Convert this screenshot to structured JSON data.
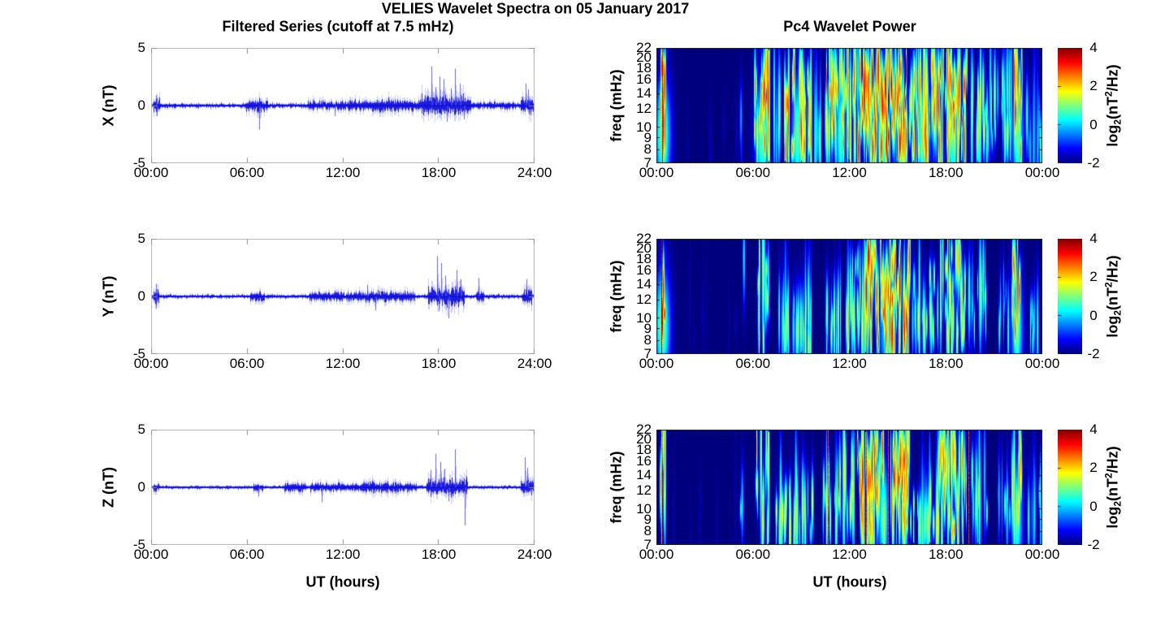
{
  "figure": {
    "title": "VELIES Wavelet Spectra on 05 January 2017",
    "left_subtitle": "Filtered Series (cutoff at 7.5 mHz)",
    "right_subtitle": "Pc4 Wavelet Power",
    "xlabel": "UT (hours)",
    "background_color": "#ffffff",
    "series_color": "#0000cc",
    "axis_box_color": "#b3b3b3",
    "tick_color": "#8f8f8f",
    "text_color": "#000000"
  },
  "left_axes": {
    "ylim": [
      -5,
      5
    ],
    "ytick_labels": [
      "5",
      "0",
      "-5"
    ],
    "xtick_labels": [
      "00:00",
      "06:00",
      "12:00",
      "18:00",
      "24:00"
    ],
    "xlabel": "UT (hours)"
  },
  "right_axes": {
    "ylabel": "freq (mHz)",
    "yscale": "log",
    "ylim_mhz": [
      7,
      22
    ],
    "ytick_values": [
      22,
      20,
      18,
      16,
      14,
      12,
      10,
      9,
      8,
      7
    ],
    "xtick_labels": [
      "00:00",
      "06:00",
      "12:00",
      "18:00",
      "00:00"
    ],
    "xlabel": "UT (hours)",
    "colorbar": {
      "range": [
        -2,
        4
      ],
      "tick_labels": [
        "4",
        "2",
        "0",
        "-2"
      ],
      "colormap": "jet",
      "label_parts": {
        "p1": "log",
        "sub": "2",
        "p2": "(nT",
        "sup": "2",
        "p3": "/Hz)"
      }
    }
  },
  "chart_data": [
    {
      "type": "line",
      "component": "X",
      "ylabel": "X (nT)",
      "xlabel": "UT (hours)",
      "ylim": [
        -5,
        5
      ],
      "xlim_hours": [
        0,
        24
      ],
      "yticks": [
        5,
        0,
        -5
      ],
      "xticks": [
        "00:00",
        "06:00",
        "12:00",
        "18:00",
        "24:00"
      ],
      "noise_floor_nT": 0.14,
      "envelope": [
        {
          "t": [
            0.15,
            0.55
          ],
          "amp": 0.55
        },
        {
          "t": [
            5.9,
            7.3
          ],
          "amp": 0.35
        },
        {
          "t": [
            6.6,
            6.9
          ],
          "amp": 0.5
        },
        {
          "t": [
            9.8,
            12.2
          ],
          "amp": 0.3
        },
        {
          "t": [
            12.3,
            16.9
          ],
          "amp": 0.35
        },
        {
          "t": [
            13.8,
            15.3
          ],
          "amp": 0.45
        },
        {
          "t": [
            16.9,
            20.0
          ],
          "amp": 0.65
        },
        {
          "t": [
            20.0,
            22.8
          ],
          "amp": 0.22
        },
        {
          "t": [
            23.1,
            23.9
          ],
          "amp": 0.5
        }
      ],
      "spikes": [
        {
          "t": 0.3,
          "v": 0.9
        },
        {
          "t": 0.35,
          "v": -0.9
        },
        {
          "t": 6.75,
          "v": -2.1
        },
        {
          "t": 11.5,
          "v": -0.9
        },
        {
          "t": 17.55,
          "v": 3.4
        },
        {
          "t": 17.8,
          "v": 1.6
        },
        {
          "t": 18.05,
          "v": 2.5
        },
        {
          "t": 18.3,
          "v": 2.3
        },
        {
          "t": 18.5,
          "v": -1.4
        },
        {
          "t": 18.75,
          "v": 1.5
        },
        {
          "t": 19.0,
          "v": 3.2
        },
        {
          "t": 19.3,
          "v": 1.9
        },
        {
          "t": 19.6,
          "v": -1.2
        },
        {
          "t": 23.45,
          "v": 1.9
        },
        {
          "t": 23.6,
          "v": 1.4
        }
      ]
    },
    {
      "type": "heatmap",
      "component": "X",
      "ylabel": "freq (mHz)",
      "yscale": "log",
      "ylim_mhz": [
        7,
        22
      ],
      "clim": [
        -2,
        4
      ],
      "colormap": "jet",
      "xticks": [
        "00:00",
        "06:00",
        "12:00",
        "18:00",
        "00:00"
      ],
      "bursts": [
        {
          "t": [
            0.2,
            0.55
          ],
          "level": 4,
          "density": 25,
          "fbias": "full"
        },
        {
          "t": [
            1.0,
            5.0
          ],
          "level": -1.2,
          "density": 2,
          "fbias": "low"
        },
        {
          "t": [
            5.2,
            5.5
          ],
          "level": 0.5,
          "density": 8,
          "fbias": "low"
        },
        {
          "t": [
            6.1,
            7.0
          ],
          "level": 3.5,
          "density": 22,
          "fbias": "full"
        },
        {
          "t": [
            7.2,
            7.8
          ],
          "level": 1.5,
          "density": 12,
          "fbias": "mid"
        },
        {
          "t": [
            7.9,
            9.6
          ],
          "level": 3.2,
          "density": 20,
          "fbias": "full"
        },
        {
          "t": [
            9.7,
            10.4
          ],
          "level": 1.5,
          "density": 10,
          "fbias": "low"
        },
        {
          "t": [
            10.5,
            12.4
          ],
          "level": 3.0,
          "density": 22,
          "fbias": "full"
        },
        {
          "t": [
            12.5,
            15.6
          ],
          "level": 4,
          "density": 30,
          "fbias": "full"
        },
        {
          "t": [
            15.7,
            17.4
          ],
          "level": 3.2,
          "density": 24,
          "fbias": "full"
        },
        {
          "t": [
            17.5,
            19.3
          ],
          "level": 3.4,
          "density": 24,
          "fbias": "full"
        },
        {
          "t": [
            19.4,
            20.6
          ],
          "level": 2.2,
          "density": 16,
          "fbias": "mid"
        },
        {
          "t": [
            20.7,
            22.1
          ],
          "level": 1.8,
          "density": 14,
          "fbias": "mid"
        },
        {
          "t": [
            22.2,
            22.7
          ],
          "level": 3.8,
          "density": 20,
          "fbias": "full"
        },
        {
          "t": [
            22.9,
            23.9
          ],
          "level": 1.2,
          "density": 10,
          "fbias": "low"
        }
      ],
      "lines": [
        {
          "t": 0.33,
          "power": 3.6
        }
      ]
    },
    {
      "type": "line",
      "component": "Y",
      "ylabel": "Y (nT)",
      "xlabel": "UT (hours)",
      "ylim": [
        -5,
        5
      ],
      "xlim_hours": [
        0,
        24
      ],
      "yticks": [
        5,
        0,
        -5
      ],
      "xticks": [
        "00:00",
        "06:00",
        "12:00",
        "18:00",
        "24:00"
      ],
      "noise_floor_nT": 0.12,
      "envelope": [
        {
          "t": [
            0.15,
            0.5
          ],
          "amp": 0.5
        },
        {
          "t": [
            6.2,
            7.1
          ],
          "amp": 0.3
        },
        {
          "t": [
            9.9,
            12.1
          ],
          "amp": 0.3
        },
        {
          "t": [
            12.2,
            16.5
          ],
          "amp": 0.35
        },
        {
          "t": [
            17.3,
            19.6
          ],
          "amp": 0.6
        },
        {
          "t": [
            20.3,
            20.8
          ],
          "amp": 0.35
        },
        {
          "t": [
            23.2,
            23.8
          ],
          "amp": 0.45
        }
      ],
      "spikes": [
        {
          "t": 0.3,
          "v": 1.1
        },
        {
          "t": 0.33,
          "v": -1.0
        },
        {
          "t": 13.5,
          "v": 1.0
        },
        {
          "t": 14.05,
          "v": -1.2
        },
        {
          "t": 17.9,
          "v": 3.5
        },
        {
          "t": 18.0,
          "v": -1.3
        },
        {
          "t": 18.15,
          "v": 2.9
        },
        {
          "t": 18.4,
          "v": 1.8
        },
        {
          "t": 18.6,
          "v": -1.9
        },
        {
          "t": 19.1,
          "v": 2.3
        },
        {
          "t": 19.35,
          "v": 1.5
        },
        {
          "t": 20.5,
          "v": 1.6
        },
        {
          "t": 23.5,
          "v": 1.5
        }
      ]
    },
    {
      "type": "heatmap",
      "component": "Y",
      "ylabel": "freq (mHz)",
      "yscale": "log",
      "ylim_mhz": [
        7,
        22
      ],
      "clim": [
        -2,
        4
      ],
      "colormap": "jet",
      "xticks": [
        "00:00",
        "06:00",
        "12:00",
        "18:00",
        "00:00"
      ],
      "bursts": [
        {
          "t": [
            0.2,
            0.5
          ],
          "level": 4,
          "density": 15,
          "fbias": "full"
        },
        {
          "t": [
            1.0,
            5.0
          ],
          "level": -1.4,
          "density": 1.5,
          "fbias": "low"
        },
        {
          "t": [
            5.2,
            5.45
          ],
          "level": 1.0,
          "density": 6,
          "fbias": "full"
        },
        {
          "t": [
            6.2,
            7.0
          ],
          "level": 2.2,
          "density": 16,
          "fbias": "full"
        },
        {
          "t": [
            7.4,
            9.6
          ],
          "level": 1.8,
          "density": 14,
          "fbias": "low"
        },
        {
          "t": [
            10.4,
            11.6
          ],
          "level": 1.8,
          "density": 12,
          "fbias": "low"
        },
        {
          "t": [
            11.8,
            13.0
          ],
          "level": 2.4,
          "density": 18,
          "fbias": "full"
        },
        {
          "t": [
            13.0,
            15.8
          ],
          "level": 3.6,
          "density": 26,
          "fbias": "full"
        },
        {
          "t": [
            15.9,
            17.3
          ],
          "level": 2.0,
          "density": 16,
          "fbias": "mid"
        },
        {
          "t": [
            17.4,
            19.2
          ],
          "level": 2.6,
          "density": 18,
          "fbias": "full"
        },
        {
          "t": [
            19.3,
            20.5
          ],
          "level": 1.6,
          "density": 12,
          "fbias": "mid"
        },
        {
          "t": [
            21.3,
            22.0
          ],
          "level": 1.4,
          "density": 10,
          "fbias": "mid"
        },
        {
          "t": [
            22.1,
            22.7
          ],
          "level": 3.4,
          "density": 16,
          "fbias": "full"
        },
        {
          "t": [
            23.0,
            23.9
          ],
          "level": 1.0,
          "density": 8,
          "fbias": "low"
        }
      ],
      "lines": [
        {
          "t": 0.3,
          "power": 4
        },
        {
          "t": 6.35,
          "power": 2.0
        }
      ]
    },
    {
      "type": "line",
      "component": "Z",
      "ylabel": "Z (nT)",
      "xlabel": "UT (hours)",
      "ylim": [
        -5,
        5
      ],
      "xlim_hours": [
        0,
        24
      ],
      "yticks": [
        5,
        0,
        -5
      ],
      "xticks": [
        "00:00",
        "06:00",
        "12:00",
        "18:00",
        "24:00"
      ],
      "noise_floor_nT": 0.1,
      "envelope": [
        {
          "t": [
            0.15,
            0.5
          ],
          "amp": 0.3
        },
        {
          "t": [
            6.4,
            7.0
          ],
          "amp": 0.25
        },
        {
          "t": [
            8.3,
            9.7
          ],
          "amp": 0.3
        },
        {
          "t": [
            9.9,
            16.6
          ],
          "amp": 0.28
        },
        {
          "t": [
            13.3,
            15.4
          ],
          "amp": 0.35
        },
        {
          "t": [
            17.2,
            19.8
          ],
          "amp": 0.55
        },
        {
          "t": [
            23.1,
            23.9
          ],
          "amp": 0.45
        }
      ],
      "spikes": [
        {
          "t": 6.7,
          "v": -0.8
        },
        {
          "t": 10.7,
          "v": -1.3
        },
        {
          "t": 17.5,
          "v": 1.5
        },
        {
          "t": 17.8,
          "v": 2.9
        },
        {
          "t": 18.1,
          "v": 2.2
        },
        {
          "t": 18.35,
          "v": 1.6
        },
        {
          "t": 18.6,
          "v": -1.2
        },
        {
          "t": 19.0,
          "v": 3.3
        },
        {
          "t": 19.65,
          "v": -3.3
        },
        {
          "t": 23.4,
          "v": 2.6
        },
        {
          "t": 23.55,
          "v": 1.7
        }
      ]
    },
    {
      "type": "heatmap",
      "component": "Z",
      "ylabel": "freq (mHz)",
      "yscale": "log",
      "ylim_mhz": [
        7,
        22
      ],
      "clim": [
        -2,
        4
      ],
      "colormap": "jet",
      "xticks": [
        "00:00",
        "06:00",
        "12:00",
        "18:00",
        "00:00"
      ],
      "bursts": [
        {
          "t": [
            0.2,
            0.5
          ],
          "level": 2.8,
          "density": 12,
          "fbias": "full"
        },
        {
          "t": [
            1.0,
            5.0
          ],
          "level": -1.4,
          "density": 1.5,
          "fbias": "low"
        },
        {
          "t": [
            5.2,
            5.45
          ],
          "level": 0.8,
          "density": 6,
          "fbias": "mid"
        },
        {
          "t": [
            6.2,
            7.0
          ],
          "level": 2.4,
          "density": 16,
          "fbias": "full"
        },
        {
          "t": [
            7.4,
            9.7
          ],
          "level": 2.0,
          "density": 14,
          "fbias": "low"
        },
        {
          "t": [
            10.3,
            12.3
          ],
          "level": 2.2,
          "density": 16,
          "fbias": "mid"
        },
        {
          "t": [
            12.4,
            15.8
          ],
          "level": 3.4,
          "density": 26,
          "fbias": "full"
        },
        {
          "t": [
            15.9,
            17.3
          ],
          "level": 2.0,
          "density": 16,
          "fbias": "low"
        },
        {
          "t": [
            17.4,
            19.3
          ],
          "level": 2.8,
          "density": 18,
          "fbias": "full"
        },
        {
          "t": [
            19.4,
            20.6
          ],
          "level": 1.6,
          "density": 12,
          "fbias": "mid"
        },
        {
          "t": [
            21.2,
            22.0
          ],
          "level": 1.2,
          "density": 10,
          "fbias": "mid"
        },
        {
          "t": [
            22.1,
            22.7
          ],
          "level": 3.0,
          "density": 16,
          "fbias": "full"
        },
        {
          "t": [
            23.0,
            23.9
          ],
          "level": 1.0,
          "density": 8,
          "fbias": "low"
        }
      ],
      "lines": [
        {
          "t": 0.3,
          "power": 2.5
        },
        {
          "t": 10.65,
          "power": 3.2
        },
        {
          "t": 13.05,
          "power": 3.4
        },
        {
          "t": 14.4,
          "power": 3.2
        },
        {
          "t": 19.4,
          "power": 3.3
        }
      ]
    }
  ]
}
